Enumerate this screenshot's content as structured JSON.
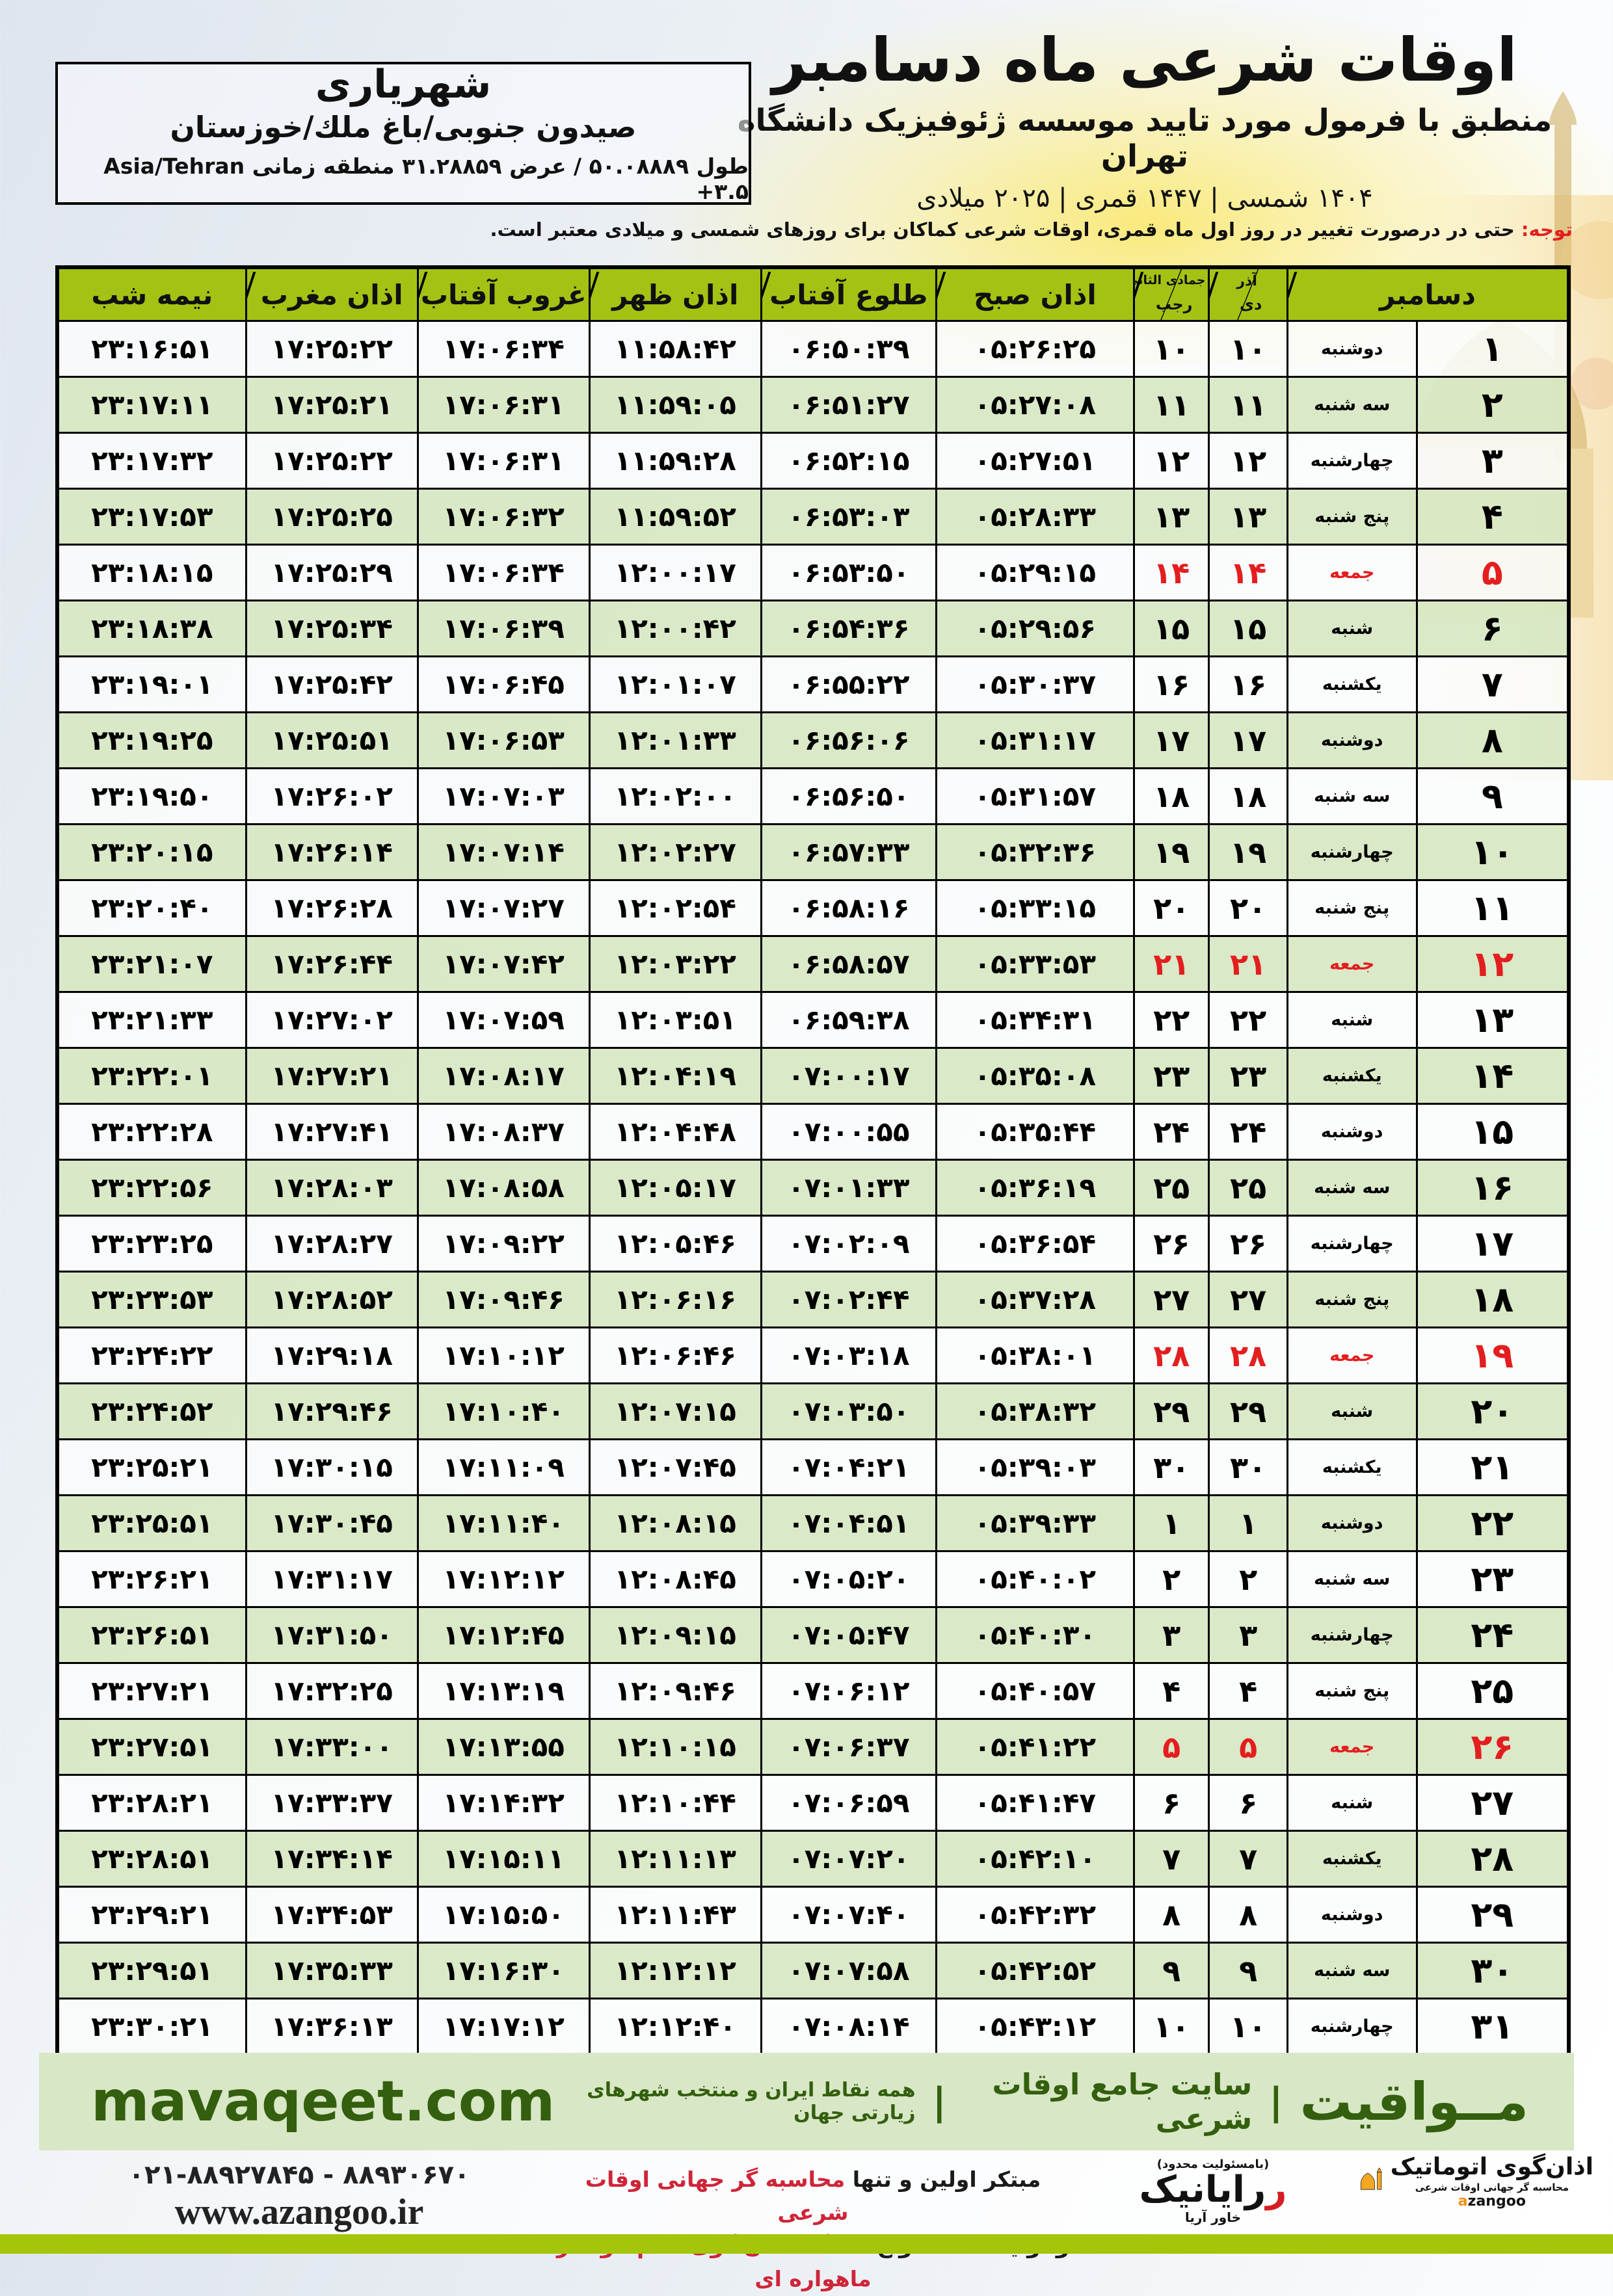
{
  "header": {
    "title": "اوقات شرعی ماه دسامبر",
    "subtitle": "منطبق با فرمول مورد تایید موسسه ژئوفیزیک دانشگاه تهران",
    "years_line": "۱۴۰۴ شمسی | ۱۴۴۷ قمری | ۲۰۲۵ میلادی"
  },
  "location_box": {
    "city": "شهریاری",
    "region": "صیدون جنوبی/باغ ملك/خوزستان",
    "coords": "طول ۵۰.۰۸۸۸۹ / عرض ۳۱.۲۸۸۵۹ منطقه زمانی",
    "timezone": "Asia/Tehran +۳.۵"
  },
  "notice": {
    "label": "توجه:",
    "text": " حتی در درصورت تغییر در روز اول ماه قمری، اوقات شرعی کماکان برای روزهای شمسی و میلادی معتبر است."
  },
  "table": {
    "headers": {
      "december": "دسامبر",
      "azar": "آذر",
      "dey": "دی",
      "jumada": "جمادی الثانی",
      "rajab": "رجب",
      "fajr": "اذان صبح",
      "sunrise": "طلوع آفتاب",
      "dhuhr": "اذان ظهر",
      "sunset": "غروب آفتاب",
      "maghrib": "اذان مغرب",
      "midnight": "نیمه شب"
    },
    "columns_order": [
      "december_day",
      "weekday",
      "azar_dey_day",
      "jumada_rajab_day",
      "azan_sobh",
      "tolu_aftab",
      "azan_zohr",
      "ghorub_aftab",
      "azan_maghreb",
      "nimeh_shab",
      "is_friday"
    ],
    "rows": [
      [
        "۱",
        "دوشنبه",
        "۱۰",
        "۱۰",
        "۰۵:۲۶:۲۵",
        "۰۶:۵۰:۳۹",
        "۱۱:۵۸:۴۲",
        "۱۷:۰۶:۳۴",
        "۱۷:۲۵:۲۲",
        "۲۳:۱۶:۵۱",
        false
      ],
      [
        "۲",
        "سه شنبه",
        "۱۱",
        "۱۱",
        "۰۵:۲۷:۰۸",
        "۰۶:۵۱:۲۷",
        "۱۱:۵۹:۰۵",
        "۱۷:۰۶:۳۱",
        "۱۷:۲۵:۲۱",
        "۲۳:۱۷:۱۱",
        false
      ],
      [
        "۳",
        "چهارشنبه",
        "۱۲",
        "۱۲",
        "۰۵:۲۷:۵۱",
        "۰۶:۵۲:۱۵",
        "۱۱:۵۹:۲۸",
        "۱۷:۰۶:۳۱",
        "۱۷:۲۵:۲۲",
        "۲۳:۱۷:۳۲",
        false
      ],
      [
        "۴",
        "پنج شنبه",
        "۱۳",
        "۱۳",
        "۰۵:۲۸:۳۳",
        "۰۶:۵۳:۰۳",
        "۱۱:۵۹:۵۲",
        "۱۷:۰۶:۳۲",
        "۱۷:۲۵:۲۵",
        "۲۳:۱۷:۵۳",
        false
      ],
      [
        "۵",
        "جمعه",
        "۱۴",
        "۱۴",
        "۰۵:۲۹:۱۵",
        "۰۶:۵۳:۵۰",
        "۱۲:۰۰:۱۷",
        "۱۷:۰۶:۳۴",
        "۱۷:۲۵:۲۹",
        "۲۳:۱۸:۱۵",
        true
      ],
      [
        "۶",
        "شنبه",
        "۱۵",
        "۱۵",
        "۰۵:۲۹:۵۶",
        "۰۶:۵۴:۳۶",
        "۱۲:۰۰:۴۲",
        "۱۷:۰۶:۳۹",
        "۱۷:۲۵:۳۴",
        "۲۳:۱۸:۳۸",
        false
      ],
      [
        "۷",
        "یکشنبه",
        "۱۶",
        "۱۶",
        "۰۵:۳۰:۳۷",
        "۰۶:۵۵:۲۲",
        "۱۲:۰۱:۰۷",
        "۱۷:۰۶:۴۵",
        "۱۷:۲۵:۴۲",
        "۲۳:۱۹:۰۱",
        false
      ],
      [
        "۸",
        "دوشنبه",
        "۱۷",
        "۱۷",
        "۰۵:۳۱:۱۷",
        "۰۶:۵۶:۰۶",
        "۱۲:۰۱:۳۳",
        "۱۷:۰۶:۵۳",
        "۱۷:۲۵:۵۱",
        "۲۳:۱۹:۲۵",
        false
      ],
      [
        "۹",
        "سه شنبه",
        "۱۸",
        "۱۸",
        "۰۵:۳۱:۵۷",
        "۰۶:۵۶:۵۰",
        "۱۲:۰۲:۰۰",
        "۱۷:۰۷:۰۳",
        "۱۷:۲۶:۰۲",
        "۲۳:۱۹:۵۰",
        false
      ],
      [
        "۱۰",
        "چهارشنبه",
        "۱۹",
        "۱۹",
        "۰۵:۳۲:۳۶",
        "۰۶:۵۷:۳۳",
        "۱۲:۰۲:۲۷",
        "۱۷:۰۷:۱۴",
        "۱۷:۲۶:۱۴",
        "۲۳:۲۰:۱۵",
        false
      ],
      [
        "۱۱",
        "پنج شنبه",
        "۲۰",
        "۲۰",
        "۰۵:۳۳:۱۵",
        "۰۶:۵۸:۱۶",
        "۱۲:۰۲:۵۴",
        "۱۷:۰۷:۲۷",
        "۱۷:۲۶:۲۸",
        "۲۳:۲۰:۴۰",
        false
      ],
      [
        "۱۲",
        "جمعه",
        "۲۱",
        "۲۱",
        "۰۵:۳۳:۵۳",
        "۰۶:۵۸:۵۷",
        "۱۲:۰۳:۲۲",
        "۱۷:۰۷:۴۲",
        "۱۷:۲۶:۴۴",
        "۲۳:۲۱:۰۷",
        true
      ],
      [
        "۱۳",
        "شنبه",
        "۲۲",
        "۲۲",
        "۰۵:۳۴:۳۱",
        "۰۶:۵۹:۳۸",
        "۱۲:۰۳:۵۱",
        "۱۷:۰۷:۵۹",
        "۱۷:۲۷:۰۲",
        "۲۳:۲۱:۳۳",
        false
      ],
      [
        "۱۴",
        "یکشنبه",
        "۲۳",
        "۲۳",
        "۰۵:۳۵:۰۸",
        "۰۷:۰۰:۱۷",
        "۱۲:۰۴:۱۹",
        "۱۷:۰۸:۱۷",
        "۱۷:۲۷:۲۱",
        "۲۳:۲۲:۰۱",
        false
      ],
      [
        "۱۵",
        "دوشنبه",
        "۲۴",
        "۲۴",
        "۰۵:۳۵:۴۴",
        "۰۷:۰۰:۵۵",
        "۱۲:۰۴:۴۸",
        "۱۷:۰۸:۳۷",
        "۱۷:۲۷:۴۱",
        "۲۳:۲۲:۲۸",
        false
      ],
      [
        "۱۶",
        "سه شنبه",
        "۲۵",
        "۲۵",
        "۰۵:۳۶:۱۹",
        "۰۷:۰۱:۳۳",
        "۱۲:۰۵:۱۷",
        "۱۷:۰۸:۵۸",
        "۱۷:۲۸:۰۳",
        "۲۳:۲۲:۵۶",
        false
      ],
      [
        "۱۷",
        "چهارشنبه",
        "۲۶",
        "۲۶",
        "۰۵:۳۶:۵۴",
        "۰۷:۰۲:۰۹",
        "۱۲:۰۵:۴۶",
        "۱۷:۰۹:۲۲",
        "۱۷:۲۸:۲۷",
        "۲۳:۲۳:۲۵",
        false
      ],
      [
        "۱۸",
        "پنج شنبه",
        "۲۷",
        "۲۷",
        "۰۵:۳۷:۲۸",
        "۰۷:۰۲:۴۴",
        "۱۲:۰۶:۱۶",
        "۱۷:۰۹:۴۶",
        "۱۷:۲۸:۵۲",
        "۲۳:۲۳:۵۳",
        false
      ],
      [
        "۱۹",
        "جمعه",
        "۲۸",
        "۲۸",
        "۰۵:۳۸:۰۱",
        "۰۷:۰۳:۱۸",
        "۱۲:۰۶:۴۶",
        "۱۷:۱۰:۱۲",
        "۱۷:۲۹:۱۸",
        "۲۳:۲۴:۲۲",
        true
      ],
      [
        "۲۰",
        "شنبه",
        "۲۹",
        "۲۹",
        "۰۵:۳۸:۳۲",
        "۰۷:۰۳:۵۰",
        "۱۲:۰۷:۱۵",
        "۱۷:۱۰:۴۰",
        "۱۷:۲۹:۴۶",
        "۲۳:۲۴:۵۲",
        false
      ],
      [
        "۲۱",
        "یکشنبه",
        "۳۰",
        "۳۰",
        "۰۵:۳۹:۰۳",
        "۰۷:۰۴:۲۱",
        "۱۲:۰۷:۴۵",
        "۱۷:۱۱:۰۹",
        "۱۷:۳۰:۱۵",
        "۲۳:۲۵:۲۱",
        false
      ],
      [
        "۲۲",
        "دوشنبه",
        "۱",
        "۱",
        "۰۵:۳۹:۳۳",
        "۰۷:۰۴:۵۱",
        "۱۲:۰۸:۱۵",
        "۱۷:۱۱:۴۰",
        "۱۷:۳۰:۴۵",
        "۲۳:۲۵:۵۱",
        false
      ],
      [
        "۲۳",
        "سه شنبه",
        "۲",
        "۲",
        "۰۵:۴۰:۰۲",
        "۰۷:۰۵:۲۰",
        "۱۲:۰۸:۴۵",
        "۱۷:۱۲:۱۲",
        "۱۷:۳۱:۱۷",
        "۲۳:۲۶:۲۱",
        false
      ],
      [
        "۲۴",
        "چهارشنبه",
        "۳",
        "۳",
        "۰۵:۴۰:۳۰",
        "۰۷:۰۵:۴۷",
        "۱۲:۰۹:۱۵",
        "۱۷:۱۲:۴۵",
        "۱۷:۳۱:۵۰",
        "۲۳:۲۶:۵۱",
        false
      ],
      [
        "۲۵",
        "پنج شنبه",
        "۴",
        "۴",
        "۰۵:۴۰:۵۷",
        "۰۷:۰۶:۱۲",
        "۱۲:۰۹:۴۶",
        "۱۷:۱۳:۱۹",
        "۱۷:۳۲:۲۵",
        "۲۳:۲۷:۲۱",
        false
      ],
      [
        "۲۶",
        "جمعه",
        "۵",
        "۵",
        "۰۵:۴۱:۲۲",
        "۰۷:۰۶:۳۷",
        "۱۲:۱۰:۱۵",
        "۱۷:۱۳:۵۵",
        "۱۷:۳۳:۰۰",
        "۲۳:۲۷:۵۱",
        true
      ],
      [
        "۲۷",
        "شنبه",
        "۶",
        "۶",
        "۰۵:۴۱:۴۷",
        "۰۷:۰۶:۵۹",
        "۱۲:۱۰:۴۴",
        "۱۷:۱۴:۳۲",
        "۱۷:۳۳:۳۷",
        "۲۳:۲۸:۲۱",
        false
      ],
      [
        "۲۸",
        "یکشنبه",
        "۷",
        "۷",
        "۰۵:۴۲:۱۰",
        "۰۷:۰۷:۲۰",
        "۱۲:۱۱:۱۳",
        "۱۷:۱۵:۱۱",
        "۱۷:۳۴:۱۴",
        "۲۳:۲۸:۵۱",
        false
      ],
      [
        "۲۹",
        "دوشنبه",
        "۸",
        "۸",
        "۰۵:۴۲:۳۲",
        "۰۷:۰۷:۴۰",
        "۱۲:۱۱:۴۳",
        "۱۷:۱۵:۵۰",
        "۱۷:۳۴:۵۳",
        "۲۳:۲۹:۲۱",
        false
      ],
      [
        "۳۰",
        "سه شنبه",
        "۹",
        "۹",
        "۰۵:۴۲:۵۲",
        "۰۷:۰۷:۵۸",
        "۱۲:۱۲:۱۲",
        "۱۷:۱۶:۳۰",
        "۱۷:۳۵:۳۳",
        "۲۳:۲۹:۵۱",
        false
      ],
      [
        "۳۱",
        "چهارشنبه",
        "۱۰",
        "۱۰",
        "۰۵:۴۳:۱۲",
        "۰۷:۰۸:۱۴",
        "۱۲:۱۲:۴۰",
        "۱۷:۱۷:۱۲",
        "۱۷:۳۶:۱۳",
        "۲۳:۳۰:۲۱",
        false
      ]
    ]
  },
  "banner": {
    "brand": "مــواقیت",
    "divider": "|",
    "tagline": "سایت جامع اوقات شرعی",
    "tagline_small": "همه نقاط ایران و منتخب شهرهای زیارتی جهان",
    "url": "mavaqeet.com"
  },
  "footer": {
    "phone": "۰۲۱-۸۸۹۲۷۸۴۵ - ۸۸۹۳۰۶۷۰",
    "website": "www.azangoo.ir",
    "desc_line1_black": "مبتکر اولین و تنها ",
    "desc_line1_red": "محاسبه گر جهانی اوقات شرعی",
    "desc_line2_black": "و تولید کننده انواع ",
    "desc_line2_red": "دستگاه اذان گوی تمام خودکار ماهواره ای",
    "rayanik_note": "(بامسئولیت محدود)",
    "rayanik_name": "رایانیک",
    "rayanik_sub": "خاور آریا",
    "azangoo_fa": "اذان‌گوی اتوماتیک",
    "azangoo_sub": "محاسبه گر جهانی اوقات شرعی",
    "azangoo_latin_accent": "a",
    "azangoo_latin_rest": "zangoo"
  },
  "colors": {
    "header_green": "#a4c213",
    "row_green": "#dbe9c6",
    "accent_red": "#e31e1f",
    "banner_bg": "#d8e7c6",
    "banner_text_green": "#335f0e",
    "bottom_strip_green": "#a5c50a"
  }
}
